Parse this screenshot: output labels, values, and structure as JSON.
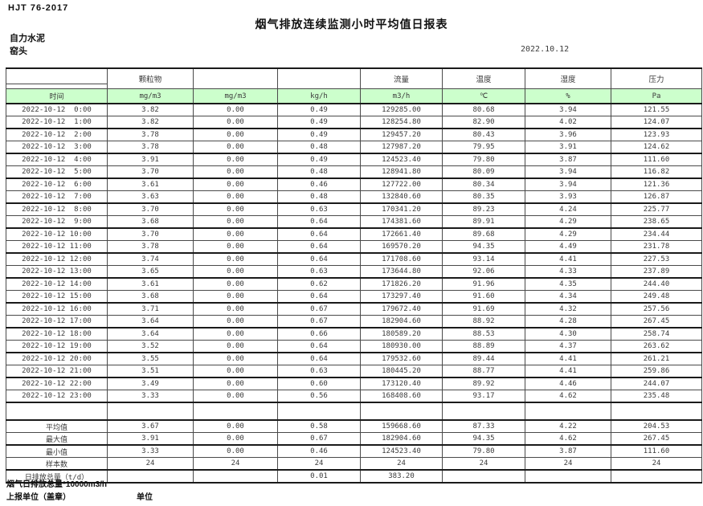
{
  "page": {
    "standard_code": "HJT  76-2017",
    "title": "烟气排放连续监测小时平均值日报表",
    "company": "自力水泥",
    "monitor_point": "窑头",
    "report_date": "2022.10.12"
  },
  "table": {
    "pollutant_headers": [
      "",
      "颗粒物",
      "",
      "",
      "流量",
      "温度",
      "湿度",
      "压力"
    ],
    "units": [
      "时间",
      "mg/m3",
      "mg/m3",
      "kg/h",
      "m3/h",
      "℃",
      "%",
      "Pa"
    ],
    "unit_row_bg": "#ccffcc",
    "rows": [
      [
        "2022-10-12  0:00",
        "3.82",
        "0.00",
        "0.49",
        "129285.00",
        "80.68",
        "3.94",
        "121.55"
      ],
      [
        "2022-10-12  1:00",
        "3.82",
        "0.00",
        "0.49",
        "128254.80",
        "82.90",
        "4.02",
        "124.07"
      ],
      [
        "2022-10-12  2:00",
        "3.78",
        "0.00",
        "0.49",
        "129457.20",
        "80.43",
        "3.96",
        "123.93"
      ],
      [
        "2022-10-12  3:00",
        "3.78",
        "0.00",
        "0.48",
        "127987.20",
        "79.95",
        "3.91",
        "124.62"
      ],
      [
        "2022-10-12  4:00",
        "3.91",
        "0.00",
        "0.49",
        "124523.40",
        "79.80",
        "3.87",
        "111.60"
      ],
      [
        "2022-10-12  5:00",
        "3.70",
        "0.00",
        "0.48",
        "128941.80",
        "80.09",
        "3.94",
        "116.82"
      ],
      [
        "2022-10-12  6:00",
        "3.61",
        "0.00",
        "0.46",
        "127722.00",
        "80.34",
        "3.94",
        "121.36"
      ],
      [
        "2022-10-12  7:00",
        "3.63",
        "0.00",
        "0.48",
        "132840.60",
        "80.35",
        "3.93",
        "126.87"
      ],
      [
        "2022-10-12  8:00",
        "3.70",
        "0.00",
        "0.63",
        "170341.20",
        "89.23",
        "4.24",
        "225.77"
      ],
      [
        "2022-10-12  9:00",
        "3.68",
        "0.00",
        "0.64",
        "174381.60",
        "89.91",
        "4.29",
        "238.65"
      ],
      [
        "2022-10-12 10:00",
        "3.70",
        "0.00",
        "0.64",
        "172661.40",
        "89.68",
        "4.29",
        "234.44"
      ],
      [
        "2022-10-12 11:00",
        "3.78",
        "0.00",
        "0.64",
        "169570.20",
        "94.35",
        "4.49",
        "231.78"
      ],
      [
        "2022-10-12 12:00",
        "3.74",
        "0.00",
        "0.64",
        "171708.60",
        "93.14",
        "4.41",
        "227.53"
      ],
      [
        "2022-10-12 13:00",
        "3.65",
        "0.00",
        "0.63",
        "173644.80",
        "92.06",
        "4.33",
        "237.89"
      ],
      [
        "2022-10-12 14:00",
        "3.61",
        "0.00",
        "0.62",
        "171826.20",
        "91.96",
        "4.35",
        "244.40"
      ],
      [
        "2022-10-12 15:00",
        "3.68",
        "0.00",
        "0.64",
        "173297.40",
        "91.60",
        "4.34",
        "249.48"
      ],
      [
        "2022-10-12 16:00",
        "3.71",
        "0.00",
        "0.67",
        "179672.40",
        "91.69",
        "4.32",
        "257.56"
      ],
      [
        "2022-10-12 17:00",
        "3.64",
        "0.00",
        "0.67",
        "182904.60",
        "88.92",
        "4.28",
        "267.45"
      ],
      [
        "2022-10-12 18:00",
        "3.64",
        "0.00",
        "0.66",
        "180589.20",
        "88.53",
        "4.30",
        "258.74"
      ],
      [
        "2022-10-12 19:00",
        "3.52",
        "0.00",
        "0.64",
        "180930.00",
        "88.89",
        "4.37",
        "263.62"
      ],
      [
        "2022-10-12 20:00",
        "3.55",
        "0.00",
        "0.64",
        "179532.60",
        "89.44",
        "4.41",
        "261.21"
      ],
      [
        "2022-10-12 21:00",
        "3.51",
        "0.00",
        "0.63",
        "180445.20",
        "88.77",
        "4.41",
        "259.86"
      ],
      [
        "2022-10-12 22:00",
        "3.49",
        "0.00",
        "0.60",
        "173120.40",
        "89.92",
        "4.46",
        "244.07"
      ],
      [
        "2022-10-12 23:00",
        "3.33",
        "0.00",
        "0.56",
        "168408.60",
        "93.17",
        "4.62",
        "235.48"
      ]
    ],
    "summary_rows": [
      {
        "label": "平均值",
        "values": [
          "3.67",
          "0.00",
          "0.58",
          "159668.60",
          "87.33",
          "4.22",
          "204.53"
        ]
      },
      {
        "label": "最大值",
        "values": [
          "3.91",
          "0.00",
          "0.67",
          "182904.60",
          "94.35",
          "4.62",
          "267.45"
        ]
      },
      {
        "label": "最小值",
        "values": [
          "3.33",
          "0.00",
          "0.46",
          "124523.40",
          "79.80",
          "3.87",
          "111.60"
        ]
      },
      {
        "label": "样本数",
        "values": [
          "24",
          "24",
          "24",
          "24",
          "24",
          "24",
          "24"
        ]
      },
      {
        "label": "日排放总量（t/d）",
        "label_align": "left",
        "values": [
          "",
          "",
          "0.01",
          "383.20",
          "",
          "",
          ""
        ]
      }
    ]
  },
  "footer": {
    "note_total": "烟气日排放总量*10000m3/h",
    "note_report_unit": "上报单位（盖章）",
    "note_unit": "单位"
  }
}
